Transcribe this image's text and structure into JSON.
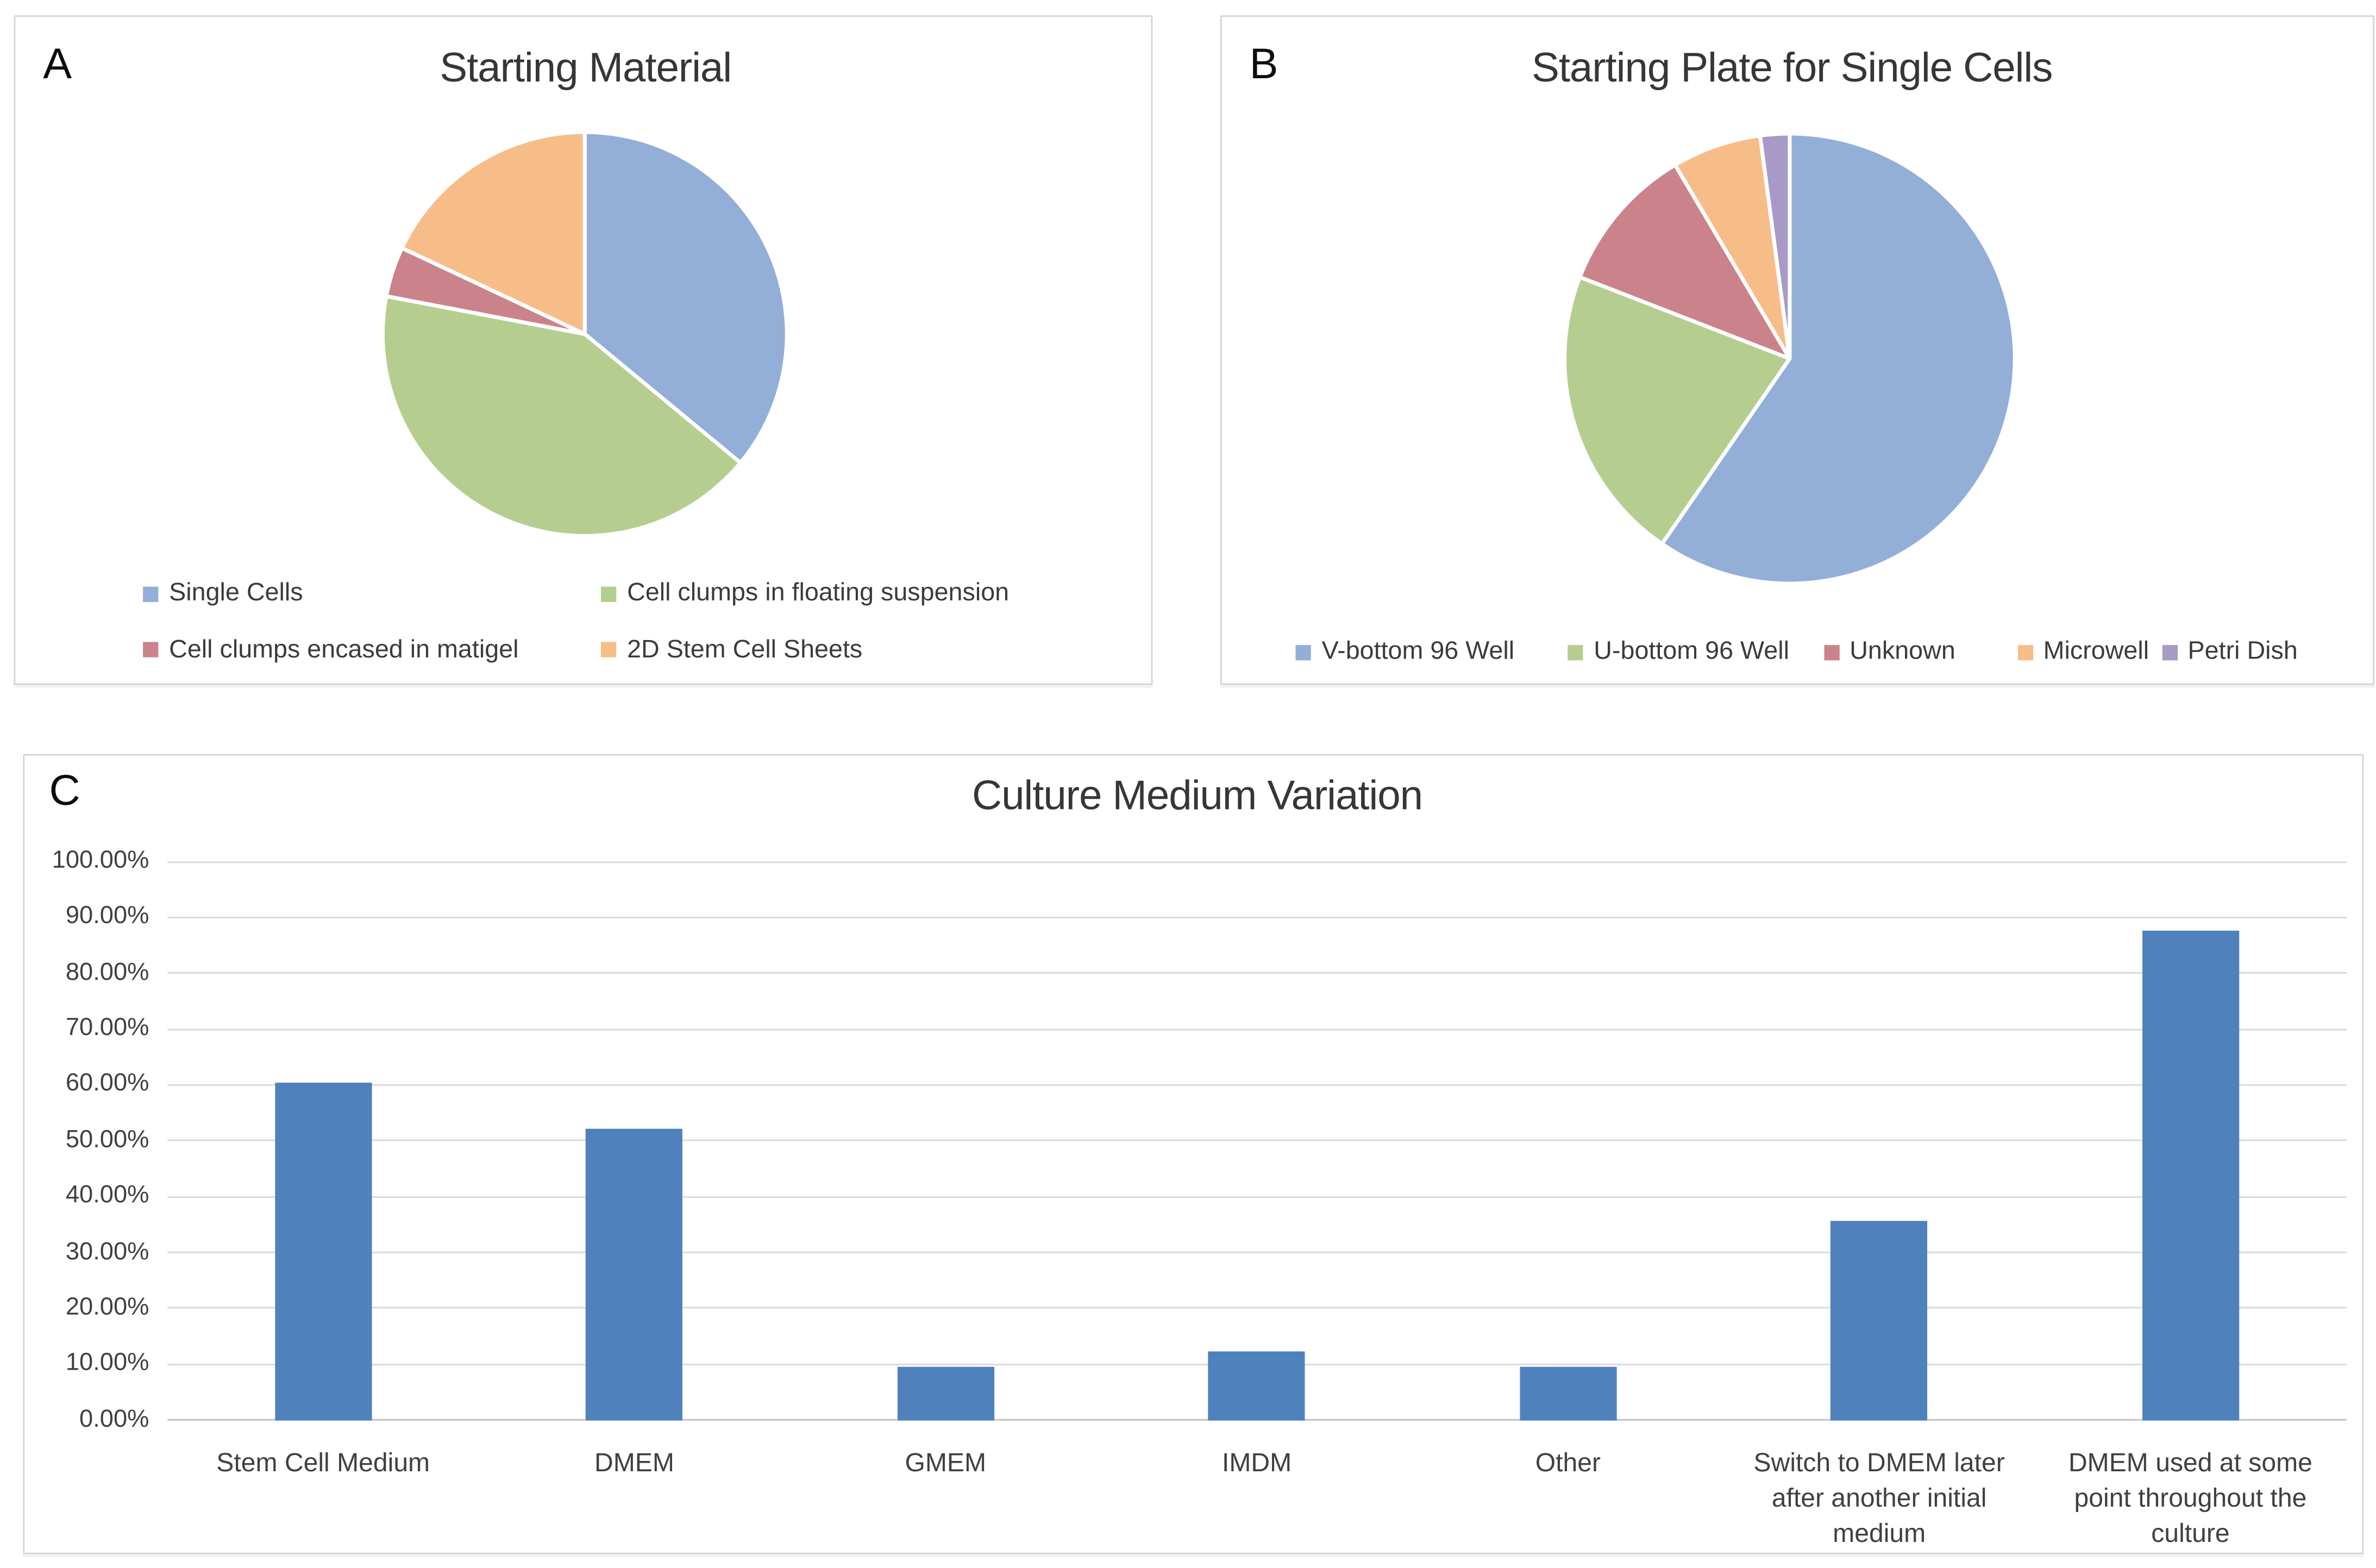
{
  "figure": {
    "background": "#FFFFFF",
    "panel_border_color": "#D4D4D4"
  },
  "panels": {
    "a": {
      "letter": "A"
    },
    "b": {
      "letter": "B"
    },
    "c": {
      "letter": "C"
    }
  },
  "palette": {
    "pie_blue": "#93AED7",
    "pie_green": "#B6CD90",
    "pie_red": "#CB838B",
    "pie_orange": "#F7BD89",
    "pie_purple": "#A89AC7",
    "bar_blue": "#4F81BD",
    "gridline": "#D9D9D9",
    "axis_line": "#BFBFBF",
    "text_dark": "#3B3B3B"
  },
  "chart_data": [
    {
      "panel": "A",
      "type": "pie",
      "title": "Starting Material",
      "categories": [
        "Single Cells",
        "Cell clumps in floating suspension",
        "Cell clumps encased in matigel",
        "2D Stem Cell Sheets"
      ],
      "values_percent": [
        36,
        42,
        4,
        18
      ],
      "colors": [
        "#93AED7",
        "#B6CD90",
        "#CB838B",
        "#F7BD89"
      ],
      "start_angle_deg": 0,
      "direction": "clockwise",
      "legend_position": "bottom",
      "grid": false
    },
    {
      "panel": "B",
      "type": "pie",
      "title": "Starting Plate for Single Cells",
      "categories": [
        "V-bottom 96 Well",
        "U-bottom 96 Well",
        "Unknown",
        "Microwell",
        "Petri Dish"
      ],
      "values_percent": [
        59.6,
        21.3,
        10.6,
        6.4,
        2.1
      ],
      "colors": [
        "#93AED7",
        "#B6CD90",
        "#CB838B",
        "#F7BD89",
        "#A89AC7"
      ],
      "start_angle_deg": 0,
      "direction": "clockwise",
      "legend_position": "bottom",
      "grid": false
    },
    {
      "panel": "C",
      "type": "bar",
      "title": "Culture Medium Variation",
      "categories": [
        "Stem Cell Medium",
        "DMEM",
        "GMEM",
        "IMDM",
        "Other",
        "Switch to DMEM later after another initial medium",
        "DMEM used at some point throughout the culture"
      ],
      "values_percent": [
        60.27,
        52.05,
        9.59,
        12.33,
        9.59,
        35.62,
        87.67
      ],
      "bar_color": "#4F81BD",
      "xlabel": "",
      "ylabel": "",
      "ylim": [
        0,
        100
      ],
      "y_tick_labels": [
        "100.00%",
        "90.00%",
        "80.00%",
        "70.00%",
        "60.00%",
        "50.00%",
        "40.00%",
        "30.00%",
        "20.00%",
        "10.00%",
        "0.00%"
      ],
      "grid": true,
      "legend_position": "none"
    }
  ]
}
